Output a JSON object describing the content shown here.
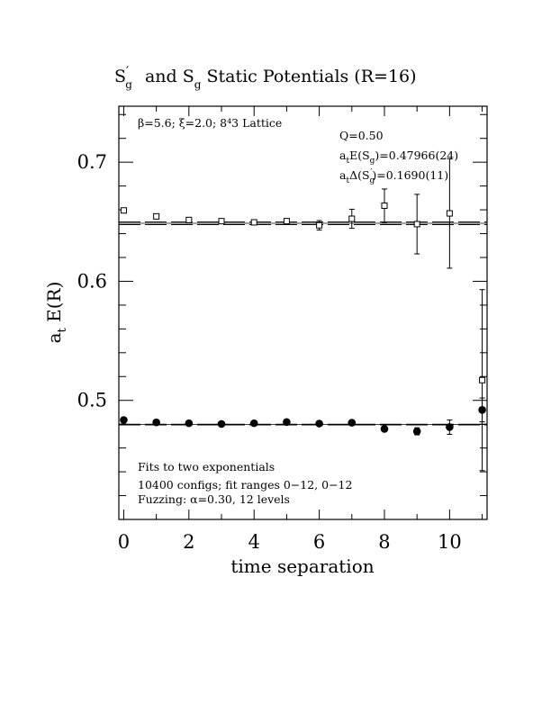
{
  "chart_data": {
    "type": "scatter",
    "title": {
      "part1": "S",
      "part1_sup": "′",
      "part1_sub": "g",
      "mid": " and S",
      "mid_sub": "g",
      "rest": " Static Potentials (R=16)"
    },
    "xlabel": "time separation",
    "ylabel": {
      "main_a": "a",
      "main_sub": "t",
      "main_b": " E(R)"
    },
    "xlim": [
      -0.15,
      11.15
    ],
    "ylim": [
      0.4,
      0.747
    ],
    "xticks": [
      "0",
      "2",
      "4",
      "6",
      "8",
      "10"
    ],
    "xtick_values": [
      0,
      2,
      4,
      6,
      8,
      10
    ],
    "yticks": [
      "0.5",
      "0.6",
      "0.7"
    ],
    "ytick_values": [
      0.5,
      0.6,
      0.7
    ],
    "annotations": {
      "lattice": "β=5.6; ξ=2.0; 8⁴3 Lattice",
      "q": "Q=0.50",
      "energy_a": "a",
      "energy_sub1": "t",
      "energy_b": "E(S",
      "energy_sub2": "g",
      "energy_c": ")=0.47966(24)",
      "delta_a": "a",
      "delta_sub1": "t",
      "delta_b": "Δ(S",
      "delta_sub2": "g",
      "delta_sup": "′",
      "delta_c": ")=0.1690(11)",
      "fits": "Fits to two exponentials",
      "configs": "10400 configs; fit ranges 0−12, 0−12",
      "fuzzing": "Fuzzing: α=0.30, 12 levels"
    },
    "series": [
      {
        "marker": "open-square",
        "x": [
          0,
          1,
          2,
          3,
          4,
          5,
          6,
          7,
          8,
          9,
          10,
          11
        ],
        "y": [
          0.6595,
          0.6545,
          0.6515,
          0.6505,
          0.6495,
          0.6505,
          0.647,
          0.6525,
          0.6635,
          0.648,
          0.657,
          0.517
        ],
        "yerr": [
          0.001,
          0.001,
          0.001,
          0.001,
          0.001,
          0.001,
          0.004,
          0.008,
          0.014,
          0.025,
          0.046,
          0.076
        ]
      },
      {
        "marker": "filled-circle",
        "x": [
          0,
          1,
          2,
          3,
          4,
          5,
          6,
          7,
          8,
          9,
          10,
          11
        ],
        "y": [
          0.4835,
          0.4815,
          0.4808,
          0.4802,
          0.4808,
          0.4818,
          0.4805,
          0.4812,
          0.476,
          0.474,
          0.4775,
          0.492
        ],
        "yerr": [
          0.0005,
          0.0005,
          0.0005,
          0.0005,
          0.0005,
          0.0005,
          0.0005,
          0.0008,
          0.0015,
          0.003,
          0.006,
          0.01
        ]
      }
    ],
    "fit_bands": [
      {
        "center": 0.6487,
        "halfwidth": 0.0011
      },
      {
        "center": 0.47966,
        "halfwidth": 0.00024
      }
    ]
  }
}
